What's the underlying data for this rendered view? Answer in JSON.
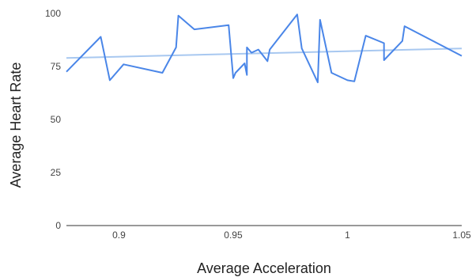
{
  "chart_data": {
    "type": "line",
    "xlabel": "Average Acceleration",
    "ylabel": "Average Heart Rate",
    "xlim": [
      0.877,
      1.05
    ],
    "ylim": [
      0,
      100
    ],
    "x_ticks": [
      0.9,
      0.95,
      1,
      1.05
    ],
    "x_tick_labels": [
      "0.9",
      "0.95",
      "1",
      "1.05"
    ],
    "y_ticks": [
      0,
      25,
      50,
      75,
      100
    ],
    "y_tick_labels": [
      "0",
      "25",
      "50",
      "75",
      "100"
    ],
    "grid": false,
    "series": [
      {
        "color": "#4a86e8",
        "x": [
          0.877,
          0.892,
          0.896,
          0.902,
          0.919,
          0.925,
          0.926,
          0.933,
          0.948,
          0.95,
          0.951,
          0.955,
          0.956,
          0.956,
          0.958,
          0.961,
          0.965,
          0.966,
          0.978,
          0.98,
          0.987,
          0.988,
          0.993,
          1.0,
          1.003,
          1.008,
          1.016,
          1.016,
          1.024,
          1.025,
          1.05
        ],
        "y": [
          72.5,
          89,
          68.5,
          76,
          72,
          84,
          99,
          92.5,
          94.5,
          69.5,
          72,
          76.5,
          71,
          84,
          81.5,
          83,
          77.5,
          83,
          99.5,
          83.5,
          67.5,
          97,
          72,
          68.5,
          68,
          89.5,
          86,
          78,
          87,
          94,
          80
        ]
      },
      {
        "color": "#a8c8f0",
        "x": [
          0.877,
          1.05
        ],
        "y": [
          79,
          83.5
        ]
      }
    ]
  }
}
